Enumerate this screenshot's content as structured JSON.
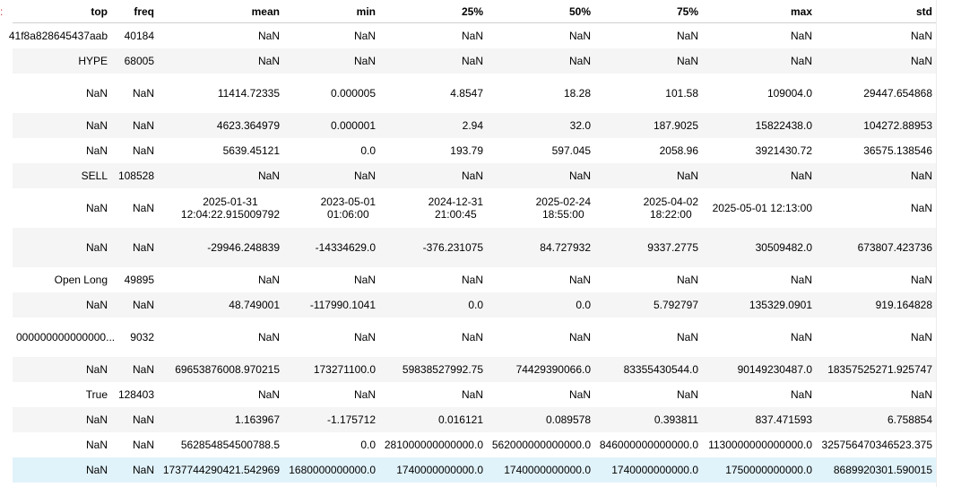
{
  "marker": ":",
  "columns": [
    "top",
    "freq",
    "mean",
    "min",
    "25%",
    "50%",
    "75%",
    "max",
    "std"
  ],
  "rows": [
    [
      "41f8a828645437aab",
      "40184",
      "NaN",
      "NaN",
      "NaN",
      "NaN",
      "NaN",
      "NaN",
      "NaN"
    ],
    [
      "HYPE",
      "68005",
      "NaN",
      "NaN",
      "NaN",
      "NaN",
      "NaN",
      "NaN",
      "NaN"
    ],
    [
      "NaN",
      "NaN",
      "11414.72335",
      "0.000005",
      "4.8547",
      "18.28",
      "101.58",
      "109004.0",
      "29447.654868"
    ],
    [
      "NaN",
      "NaN",
      "4623.364979",
      "0.000001",
      "2.94",
      "32.0",
      "187.9025",
      "15822438.0",
      "104272.88953"
    ],
    [
      "NaN",
      "NaN",
      "5639.45121",
      "0.0",
      "193.79",
      "597.045",
      "2058.96",
      "3921430.72",
      "36575.138546"
    ],
    [
      "SELL",
      "108528",
      "NaN",
      "NaN",
      "NaN",
      "NaN",
      "NaN",
      "NaN",
      "NaN"
    ],
    [
      "NaN",
      "NaN",
      "2025-01-31|12:04:22.915009792",
      "2023-05-01|01:06:00",
      "2024-12-31|21:00:45",
      "2025-02-24|18:55:00",
      "2025-04-02|18:22:00",
      "2025-05-01 12:13:00",
      "NaN"
    ],
    [
      "NaN",
      "NaN",
      "-29946.248839",
      "-14334629.0",
      "-376.231075",
      "84.727932",
      "9337.2775",
      "30509482.0",
      "673807.423736"
    ],
    [
      "Open Long",
      "49895",
      "NaN",
      "NaN",
      "NaN",
      "NaN",
      "NaN",
      "NaN",
      "NaN"
    ],
    [
      "NaN",
      "NaN",
      "48.749001",
      "-117990.1041",
      "0.0",
      "0.0",
      "5.792797",
      "135329.0901",
      "919.164828"
    ],
    [
      "000000000000000...",
      "9032",
      "NaN",
      "NaN",
      "NaN",
      "NaN",
      "NaN",
      "NaN",
      "NaN"
    ],
    [
      "NaN",
      "NaN",
      "69653876008.970215",
      "173271100.0",
      "59838527992.75",
      "74429390066.0",
      "83355430544.0",
      "90149230487.0",
      "18357525271.925747"
    ],
    [
      "True",
      "128403",
      "NaN",
      "NaN",
      "NaN",
      "NaN",
      "NaN",
      "NaN",
      "NaN"
    ],
    [
      "NaN",
      "NaN",
      "1.163967",
      "-1.175712",
      "0.016121",
      "0.089578",
      "0.393811",
      "837.471593",
      "6.758854"
    ],
    [
      "NaN",
      "NaN",
      "562854854500788.5",
      "0.0",
      "281000000000000.0",
      "562000000000000.0",
      "846000000000000.0",
      "1130000000000000.0",
      "325756470346523.375"
    ],
    [
      "NaN",
      "NaN",
      "1737744290421.542969",
      "1680000000000.0",
      "1740000000000.0",
      "1740000000000.0",
      "1740000000000.0",
      "1750000000000.0",
      "8689920301.590015"
    ]
  ]
}
